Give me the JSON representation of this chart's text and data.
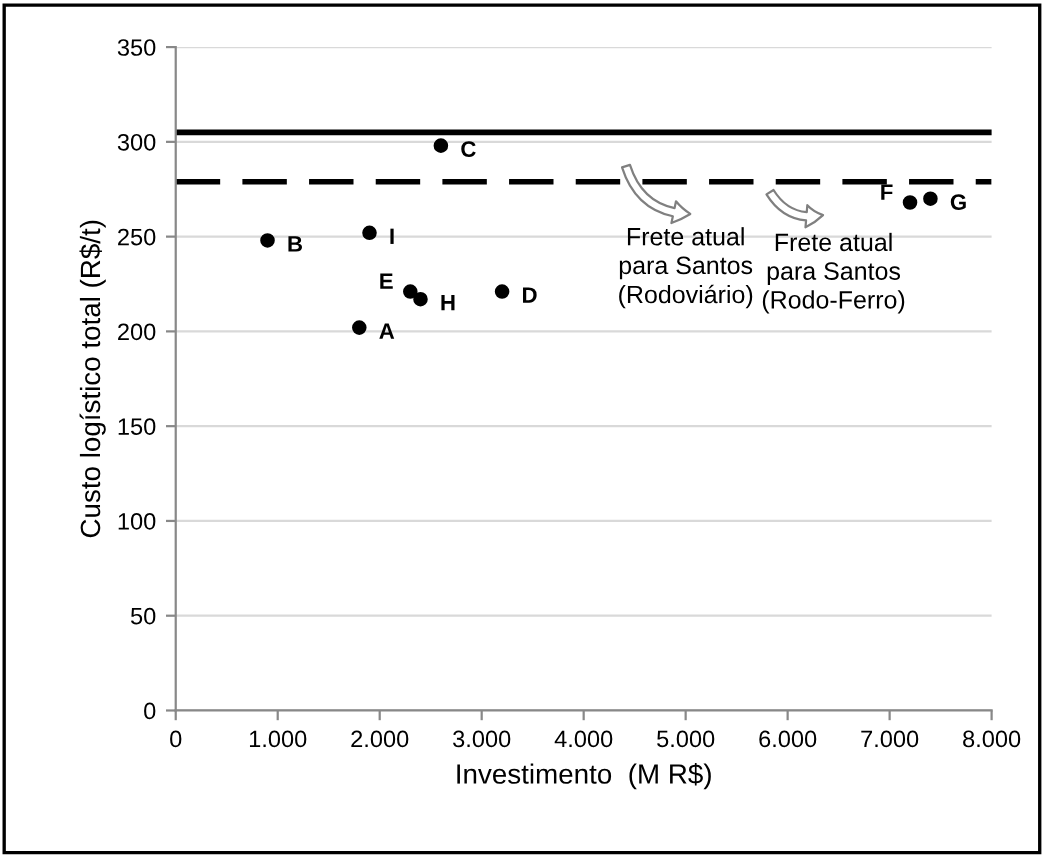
{
  "chart_data": {
    "type": "scatter",
    "xlabel": "Investimento  (M R$)",
    "ylabel": "Custo logístico total (R$/t)",
    "x": [
      1800,
      900,
      2600,
      3200,
      2300,
      7200,
      7400,
      2400,
      1900
    ],
    "values": [
      202,
      248,
      298,
      221,
      221,
      268,
      270,
      217,
      252
    ],
    "value_labels": [
      "A",
      "B",
      "C",
      "D",
      "E",
      "F",
      "G",
      "H",
      "I"
    ],
    "color": "#000000",
    "marker": "circle",
    "xlim": [
      0,
      8000
    ],
    "xticks": [
      {
        "value": 0,
        "label": "0"
      },
      {
        "value": 1000,
        "label": "1.000"
      },
      {
        "value": 2000,
        "label": "2.000"
      },
      {
        "value": 3000,
        "label": "3.000"
      },
      {
        "value": 4000,
        "label": "4.000"
      },
      {
        "value": 5000,
        "label": "5.000"
      },
      {
        "value": 6000,
        "label": "6.000"
      },
      {
        "value": 7000,
        "label": "7.000"
      },
      {
        "value": 8000,
        "label": "8.000"
      }
    ],
    "ylim": [
      0,
      350
    ],
    "yticks": [
      0,
      50,
      100,
      150,
      200,
      250,
      300,
      350
    ],
    "grid": "y",
    "ref_lines": [
      {
        "axis": "y",
        "value": 305,
        "line_style": "solid",
        "color": "#000000"
      },
      {
        "axis": "y",
        "value": 279,
        "line_style": "dashed",
        "color": "#000000"
      }
    ],
    "annotations": [
      "Frete atual\npara Santos\n(Rodoviário)",
      "Frete atual\npara Santos\n(Rodo-Ferro)"
    ]
  }
}
